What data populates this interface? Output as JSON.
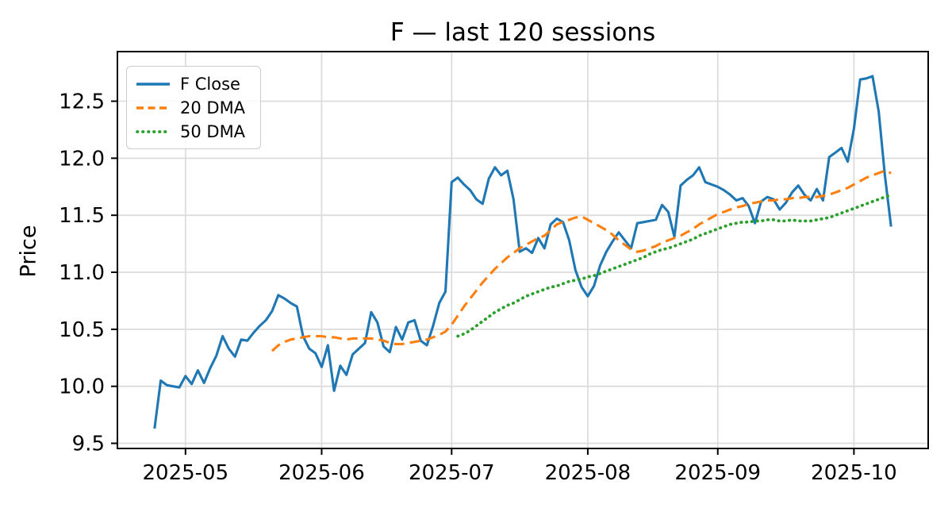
{
  "chart_data": {
    "type": "line",
    "title": "F — last 120 sessions",
    "xlabel": "",
    "ylabel": "Price",
    "grid": true,
    "legend_position": "upper-left",
    "ylim": [
      9.455,
      12.935
    ],
    "xlim_sessions": [
      -6,
      125
    ],
    "yticks": [
      9.5,
      10.0,
      10.5,
      11.0,
      11.5,
      12.0,
      12.5
    ],
    "ytick_labels": [
      "9.5",
      "10.0",
      "10.5",
      "11.0",
      "11.5",
      "12.0",
      "12.5"
    ],
    "xticks": [
      {
        "label": "2025-05",
        "index": 5
      },
      {
        "label": "2025-06",
        "index": 27
      },
      {
        "label": "2025-07",
        "index": 48
      },
      {
        "label": "2025-08",
        "index": 70
      },
      {
        "label": "2025-09",
        "index": 91
      },
      {
        "label": "2025-10",
        "index": 113
      }
    ],
    "dates": [
      "2025-04-24",
      "2025-04-25",
      "2025-04-28",
      "2025-04-29",
      "2025-04-30",
      "2025-05-01",
      "2025-05-02",
      "2025-05-05",
      "2025-05-06",
      "2025-05-07",
      "2025-05-08",
      "2025-05-09",
      "2025-05-12",
      "2025-05-13",
      "2025-05-14",
      "2025-05-15",
      "2025-05-16",
      "2025-05-19",
      "2025-05-20",
      "2025-05-21",
      "2025-05-22",
      "2025-05-23",
      "2025-05-26",
      "2025-05-27",
      "2025-05-28",
      "2025-05-29",
      "2025-05-30",
      "2025-06-02",
      "2025-06-03",
      "2025-06-04",
      "2025-06-05",
      "2025-06-06",
      "2025-06-09",
      "2025-06-10",
      "2025-06-11",
      "2025-06-12",
      "2025-06-13",
      "2025-06-16",
      "2025-06-17",
      "2025-06-18",
      "2025-06-19",
      "2025-06-20",
      "2025-06-23",
      "2025-06-24",
      "2025-06-25",
      "2025-06-26",
      "2025-06-27",
      "2025-06-30",
      "2025-07-01",
      "2025-07-02",
      "2025-07-03",
      "2025-07-07",
      "2025-07-08",
      "2025-07-09",
      "2025-07-10",
      "2025-07-11",
      "2025-07-14",
      "2025-07-15",
      "2025-07-16",
      "2025-07-17",
      "2025-07-18",
      "2025-07-21",
      "2025-07-22",
      "2025-07-23",
      "2025-07-24",
      "2025-07-25",
      "2025-07-28",
      "2025-07-29",
      "2025-07-30",
      "2025-07-31",
      "2025-08-01",
      "2025-08-04",
      "2025-08-05",
      "2025-08-06",
      "2025-08-07",
      "2025-08-08",
      "2025-08-11",
      "2025-08-12",
      "2025-08-13",
      "2025-08-14",
      "2025-08-15",
      "2025-08-18",
      "2025-08-19",
      "2025-08-20",
      "2025-08-21",
      "2025-08-22",
      "2025-08-25",
      "2025-08-26",
      "2025-08-27",
      "2025-08-28",
      "2025-08-29",
      "2025-09-01",
      "2025-09-02",
      "2025-09-03",
      "2025-09-04",
      "2025-09-05",
      "2025-09-08",
      "2025-09-09",
      "2025-09-10",
      "2025-09-11",
      "2025-09-12",
      "2025-09-15",
      "2025-09-16",
      "2025-09-17",
      "2025-09-18",
      "2025-09-19",
      "2025-09-22",
      "2025-09-23",
      "2025-09-24",
      "2025-09-25",
      "2025-09-26",
      "2025-09-29",
      "2025-09-30",
      "2025-10-01",
      "2025-10-02",
      "2025-10-03",
      "2025-10-06",
      "2025-10-07",
      "2025-10-08",
      "2025-10-09"
    ],
    "series": [
      {
        "name": "F Close",
        "color": "#1f77b4",
        "line_style": "solid",
        "start_index": 0,
        "values": [
          9.63,
          10.05,
          10.01,
          10.0,
          9.99,
          10.09,
          10.02,
          10.14,
          10.03,
          10.16,
          10.27,
          10.44,
          10.33,
          10.26,
          10.41,
          10.4,
          10.47,
          10.53,
          10.58,
          10.66,
          10.8,
          10.77,
          10.73,
          10.7,
          10.44,
          10.33,
          10.29,
          10.17,
          10.36,
          9.96,
          10.18,
          10.1,
          10.28,
          10.33,
          10.38,
          10.65,
          10.56,
          10.35,
          10.3,
          10.52,
          10.41,
          10.56,
          10.58,
          10.4,
          10.36,
          10.53,
          10.73,
          10.83,
          11.79,
          11.83,
          11.77,
          11.72,
          11.64,
          11.6,
          11.82,
          11.92,
          11.85,
          11.89,
          11.64,
          11.18,
          11.21,
          11.17,
          11.3,
          11.21,
          11.42,
          11.47,
          11.44,
          11.28,
          11.02,
          10.87,
          10.79,
          10.88,
          11.06,
          11.18,
          11.27,
          11.35,
          11.28,
          11.21,
          11.43,
          11.44,
          11.45,
          11.46,
          11.59,
          11.53,
          11.31,
          11.76,
          11.81,
          11.85,
          11.92,
          11.79,
          11.77,
          11.75,
          11.72,
          11.68,
          11.63,
          11.65,
          11.58,
          11.43,
          11.62,
          11.66,
          11.64,
          11.55,
          11.61,
          11.7,
          11.76,
          11.68,
          11.63,
          11.73,
          11.63,
          12.01,
          12.05,
          12.09,
          11.97,
          12.26,
          12.69,
          12.7,
          12.72,
          12.41,
          11.85,
          11.4
        ]
      },
      {
        "name": "20 DMA",
        "color": "#ff7f0e",
        "line_style": "dashed",
        "start_index": 19,
        "values": [
          10.31,
          10.36,
          10.39,
          10.41,
          10.42,
          10.43,
          10.44,
          10.44,
          10.44,
          10.43,
          10.43,
          10.42,
          10.41,
          10.42,
          10.42,
          10.42,
          10.42,
          10.41,
          10.4,
          10.38,
          10.37,
          10.37,
          10.38,
          10.39,
          10.4,
          10.41,
          10.43,
          10.45,
          10.48,
          10.54,
          10.62,
          10.7,
          10.77,
          10.84,
          10.91,
          10.97,
          11.03,
          11.08,
          11.13,
          11.17,
          11.21,
          11.24,
          11.27,
          11.3,
          11.32,
          11.37,
          11.42,
          11.44,
          11.46,
          11.48,
          11.49,
          11.46,
          11.43,
          11.4,
          11.37,
          11.33,
          11.28,
          11.24,
          11.2,
          11.18,
          11.19,
          11.21,
          11.23,
          11.26,
          11.28,
          11.3,
          11.32,
          11.35,
          11.38,
          11.42,
          11.45,
          11.48,
          11.51,
          11.53,
          11.55,
          11.57,
          11.58,
          11.6,
          11.61,
          11.62,
          11.63,
          11.63,
          11.64,
          11.64,
          11.65,
          11.65,
          11.66,
          11.66,
          11.66,
          11.67,
          11.68,
          11.7,
          11.72,
          11.74,
          11.77,
          11.8,
          11.83,
          11.85,
          11.87,
          11.89,
          11.87
        ]
      },
      {
        "name": "50 DMA",
        "color": "#2ca02c",
        "line_style": "dotted",
        "start_index": 49,
        "values": [
          10.44,
          10.46,
          10.49,
          10.53,
          10.57,
          10.61,
          10.65,
          10.68,
          10.71,
          10.73,
          10.76,
          10.79,
          10.81,
          10.83,
          10.85,
          10.87,
          10.88,
          10.9,
          10.92,
          10.93,
          10.94,
          10.96,
          10.97,
          10.99,
          11.01,
          11.03,
          11.05,
          11.07,
          11.09,
          11.11,
          11.13,
          11.16,
          11.18,
          11.2,
          11.21,
          11.23,
          11.25,
          11.27,
          11.29,
          11.32,
          11.34,
          11.36,
          11.38,
          11.4,
          11.42,
          11.43,
          11.44,
          11.44,
          11.45,
          11.45,
          11.46,
          11.46,
          11.45,
          11.45,
          11.46,
          11.45,
          11.45,
          11.45,
          11.46,
          11.47,
          11.48,
          11.5,
          11.52,
          11.54,
          11.56,
          11.58,
          11.6,
          11.62,
          11.64,
          11.66,
          11.68
        ]
      }
    ],
    "style": {
      "grid_color": "#dcdcdc",
      "spine_color": "#000000",
      "background": "#ffffff"
    }
  }
}
